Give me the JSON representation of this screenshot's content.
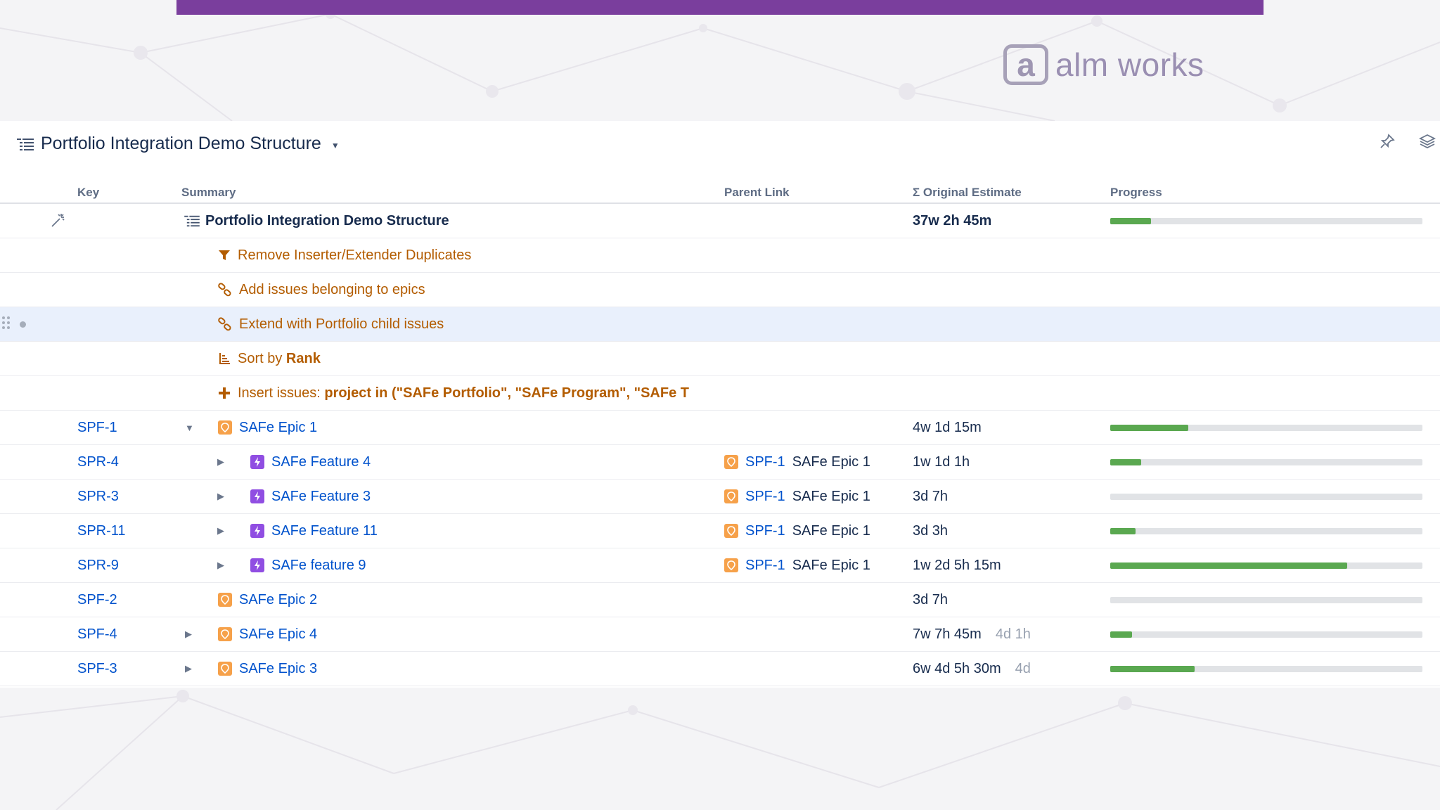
{
  "brand": {
    "mark": "a",
    "name": "alm works"
  },
  "colors": {
    "accent_bar": "#7a3e9d",
    "progress_fill": "#5aa850",
    "progress_track": "#e1e3e6",
    "link": "#0052cc",
    "generator": "#b35c00"
  },
  "header": {
    "title": "Portfolio Integration Demo Structure",
    "icons": [
      "pin-icon",
      "layers-icon"
    ]
  },
  "columns": {
    "key": "Key",
    "summary": "Summary",
    "parent": "Parent Link",
    "estimate": "Σ Original Estimate",
    "progress": "Progress"
  },
  "root": {
    "title": "Portfolio Integration Demo Structure",
    "estimate": "37w 2h 45m",
    "progress": 0.13
  },
  "generators": [
    {
      "icon": "filter-icon",
      "text": "Remove Inserter/Extender Duplicates"
    },
    {
      "icon": "link-icon",
      "text": "Add issues belonging to epics"
    },
    {
      "icon": "link-icon",
      "text": "Extend with Portfolio child issues"
    },
    {
      "icon": "sort-icon",
      "prefix": "Sort by ",
      "bold": "Rank"
    },
    {
      "icon": "plus-icon",
      "prefix": "Insert issues: ",
      "bold": "project in (\"SAFe Portfolio\", \"SAFe Program\", \"SAFe T"
    }
  ],
  "issues": [
    {
      "key": "SPF-1",
      "type": "epic",
      "summary": "SAFe Epic 1",
      "expander": "▼",
      "parent_key": "",
      "parent_name": "",
      "estimate": "4w 1d 15m",
      "estimate_extra": "",
      "progress": 0.25
    },
    {
      "key": "SPR-4",
      "type": "feature",
      "summary": "SAFe Feature 4",
      "expander": "▶",
      "parent_key": "SPF-1",
      "parent_name": "SAFe Epic 1",
      "estimate": "1w 1d 1h",
      "estimate_extra": "",
      "progress": 0.1
    },
    {
      "key": "SPR-3",
      "type": "feature",
      "summary": "SAFe Feature 3",
      "expander": "▶",
      "parent_key": "SPF-1",
      "parent_name": "SAFe Epic 1",
      "estimate": "3d 7h",
      "estimate_extra": "",
      "progress": 0.0
    },
    {
      "key": "SPR-11",
      "type": "feature",
      "summary": "SAFe Feature 11",
      "expander": "▶",
      "parent_key": "SPF-1",
      "parent_name": "SAFe Epic 1",
      "estimate": "3d 3h",
      "estimate_extra": "",
      "progress": 0.08
    },
    {
      "key": "SPR-9",
      "type": "feature",
      "summary": "SAFe feature 9",
      "expander": "▶",
      "parent_key": "SPF-1",
      "parent_name": "SAFe Epic 1",
      "estimate": "1w 2d 5h 15m",
      "estimate_extra": "",
      "progress": 0.76
    },
    {
      "key": "SPF-2",
      "type": "epic",
      "summary": "SAFe Epic 2",
      "expander": "",
      "parent_key": "",
      "parent_name": "",
      "estimate": "3d 7h",
      "estimate_extra": "",
      "progress": 0.0
    },
    {
      "key": "SPF-4",
      "type": "epic",
      "summary": "SAFe Epic 4",
      "expander": "▶",
      "parent_key": "",
      "parent_name": "",
      "estimate": "7w 7h 45m",
      "estimate_extra": "4d 1h",
      "progress": 0.07
    },
    {
      "key": "SPF-3",
      "type": "epic",
      "summary": "SAFe Epic 3",
      "expander": "▶",
      "parent_key": "",
      "parent_name": "",
      "estimate": "6w 4d 5h 30m",
      "estimate_extra": "4d",
      "progress": 0.27
    }
  ]
}
